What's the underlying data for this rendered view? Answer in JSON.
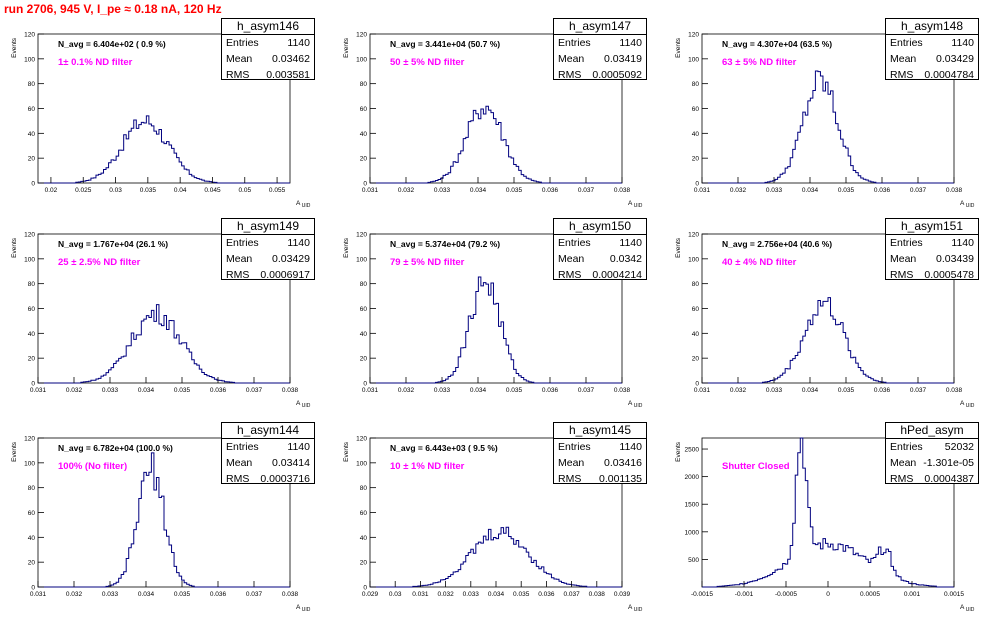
{
  "run_title": "run 2706,   945 V, I_pe ≈ 0.18 nA, 120 Hz",
  "colors": {
    "title": "#ff0000",
    "histogram": "#00007f",
    "annotation": "#ff00ff",
    "axis": "#000000"
  },
  "stat_labels": {
    "entries": "Entries",
    "mean": "Mean",
    "rms": "RMS"
  },
  "y_axis_label": "Events",
  "x_axis_label": "A_UID",
  "x_axis_sub": "UID",
  "x_axis_main": "A",
  "chart_data": [
    {
      "type": "bar",
      "title": "h_asym146",
      "nav": "N_avg = 6.404e+02 ( 0.9 %)",
      "annotation": "1± 0.1% ND filter",
      "stats": {
        "entries": "1140",
        "mean": "0.03462",
        "rms": "0.003581"
      },
      "xlim": [
        0.018,
        0.057
      ],
      "ylim": [
        0,
        120
      ],
      "xticks": [
        "0.02",
        "0.025",
        "0.03",
        "0.035",
        "0.04",
        "0.045",
        "0.05",
        "0.055"
      ],
      "yticks": [
        "0",
        "20",
        "40",
        "60",
        "80",
        "100",
        "120"
      ],
      "mean": 0.03462,
      "rms": 0.003581,
      "peak": 50
    },
    {
      "type": "bar",
      "title": "h_asym147",
      "nav": "N_avg = 3.441e+04 (50.7 %)",
      "annotation": "50 ± 5% ND filter",
      "stats": {
        "entries": "1140",
        "mean": "0.03419",
        "rms": "0.0005092"
      },
      "xlim": [
        0.031,
        0.038
      ],
      "ylim": [
        0,
        120
      ],
      "xticks": [
        "0.031",
        "0.032",
        "0.033",
        "0.034",
        "0.035",
        "0.036",
        "0.037",
        "0.038"
      ],
      "yticks": [
        "0",
        "20",
        "40",
        "60",
        "80",
        "100",
        "120"
      ],
      "mean": 0.03419,
      "rms": 0.0005092,
      "peak": 62
    },
    {
      "type": "bar",
      "title": "h_asym148",
      "nav": "N_avg = 4.307e+04 (63.5 %)",
      "annotation": "63 ± 5% ND filter",
      "stats": {
        "entries": "1140",
        "mean": "0.03429",
        "rms": "0.0004784"
      },
      "xlim": [
        0.031,
        0.038
      ],
      "ylim": [
        0,
        120
      ],
      "xticks": [
        "0.031",
        "0.032",
        "0.033",
        "0.034",
        "0.035",
        "0.036",
        "0.037",
        "0.038"
      ],
      "yticks": [
        "0",
        "20",
        "40",
        "60",
        "80",
        "100",
        "120"
      ],
      "mean": 0.03429,
      "rms": 0.0004784,
      "peak": 82
    },
    {
      "type": "bar",
      "title": "h_asym149",
      "nav": "N_avg = 1.767e+04 (26.1 %)",
      "annotation": "25 ± 2.5% ND filter",
      "stats": {
        "entries": "1140",
        "mean": "0.03429",
        "rms": "0.0006917"
      },
      "xlim": [
        0.031,
        0.038
      ],
      "ylim": [
        0,
        120
      ],
      "xticks": [
        "0.031",
        "0.032",
        "0.033",
        "0.034",
        "0.035",
        "0.036",
        "0.037",
        "0.038"
      ],
      "yticks": [
        "0",
        "20",
        "40",
        "60",
        "80",
        "100",
        "120"
      ],
      "mean": 0.03429,
      "rms": 0.0006917,
      "peak": 56
    },
    {
      "type": "bar",
      "title": "h_asym150",
      "nav": "N_avg = 5.374e+04 (79.2 %)",
      "annotation": "79 ± 5% ND filter",
      "stats": {
        "entries": "1140",
        "mean": "0.0342",
        "rms": "0.0004214"
      },
      "xlim": [
        0.031,
        0.038
      ],
      "ylim": [
        0,
        120
      ],
      "xticks": [
        "0.031",
        "0.032",
        "0.033",
        "0.034",
        "0.035",
        "0.036",
        "0.037",
        "0.038"
      ],
      "yticks": [
        "0",
        "20",
        "40",
        "60",
        "80",
        "100",
        "120"
      ],
      "mean": 0.0342,
      "rms": 0.0004214,
      "peak": 82
    },
    {
      "type": "bar",
      "title": "h_asym151",
      "nav": "N_avg = 2.756e+04 (40.6 %)",
      "annotation": "40 ± 4% ND filter",
      "stats": {
        "entries": "1140",
        "mean": "0.03439",
        "rms": "0.0005478"
      },
      "xlim": [
        0.031,
        0.038
      ],
      "ylim": [
        0,
        120
      ],
      "xticks": [
        "0.031",
        "0.032",
        "0.033",
        "0.034",
        "0.035",
        "0.036",
        "0.037",
        "0.038"
      ],
      "yticks": [
        "0",
        "20",
        "40",
        "60",
        "80",
        "100",
        "120"
      ],
      "mean": 0.03439,
      "rms": 0.0005478,
      "peak": 64
    },
    {
      "type": "bar",
      "title": "h_asym144",
      "nav": "N_avg = 6.782e+04 (100.0 %)",
      "annotation": "100% (No filter)",
      "stats": {
        "entries": "1140",
        "mean": "0.03414",
        "rms": "0.0003716"
      },
      "xlim": [
        0.031,
        0.038
      ],
      "ylim": [
        0,
        120
      ],
      "xticks": [
        "0.031",
        "0.032",
        "0.033",
        "0.034",
        "0.035",
        "0.036",
        "0.037",
        "0.038"
      ],
      "yticks": [
        "0",
        "20",
        "40",
        "60",
        "80",
        "100",
        "120"
      ],
      "mean": 0.03414,
      "rms": 0.0003716,
      "peak": 95
    },
    {
      "type": "bar",
      "title": "h_asym145",
      "nav": "N_avg = 6.443e+03 ( 9.5 %)",
      "annotation": "10 ± 1% ND filter",
      "stats": {
        "entries": "1140",
        "mean": "0.03416",
        "rms": "0.001135"
      },
      "xlim": [
        0.029,
        0.039
      ],
      "ylim": [
        0,
        120
      ],
      "xticks": [
        "0.029",
        "0.03",
        "0.031",
        "0.032",
        "0.033",
        "0.034",
        "0.035",
        "0.036",
        "0.037",
        "0.038",
        "0.039"
      ],
      "yticks": [
        "0",
        "20",
        "40",
        "60",
        "80",
        "100",
        "120"
      ],
      "mean": 0.03416,
      "rms": 0.001135,
      "peak": 44
    },
    {
      "type": "bar",
      "title": "hPed_asym",
      "nav": "",
      "annotation": "Shutter Closed",
      "stats": {
        "entries": "52032",
        "mean": "-1.301e-05",
        "rms": "0.0004387"
      },
      "xlim": [
        -0.0015,
        0.0015
      ],
      "ylim": [
        0,
        2700
      ],
      "xticks": [
        "-0.0015",
        "-0.001",
        "-0.0005",
        "0",
        "0.0005",
        "0.001",
        "0.0015"
      ],
      "yticks": [
        "500",
        "1000",
        "1500",
        "2000",
        "2500"
      ],
      "multi_peak": [
        {
          "center": -0.00032,
          "sigma": 6e-05,
          "height": 2150
        },
        {
          "center": 0.0,
          "sigma": 0.00045,
          "height": 780
        },
        {
          "center": 0.00068,
          "sigma": 8e-05,
          "height": 450
        }
      ]
    }
  ]
}
